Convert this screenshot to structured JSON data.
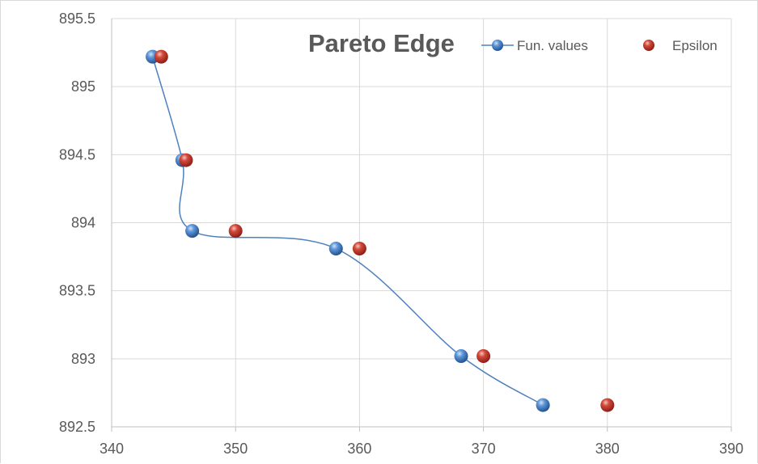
{
  "chart_data": {
    "type": "scatter",
    "title": "Pareto Edge",
    "xlabel": "",
    "ylabel": "",
    "xlim": [
      340,
      390
    ],
    "ylim": [
      892.5,
      895.5
    ],
    "x_ticks": [
      "340",
      "350",
      "360",
      "370",
      "380",
      "390"
    ],
    "y_ticks": [
      "892.5",
      "893",
      "893.5",
      "894",
      "894.5",
      "895",
      "895.5"
    ],
    "grid": true,
    "legend_position": "top-right",
    "series": [
      {
        "name": "Fun. values",
        "style": "smooth-line-with-markers",
        "color": "#2e6db4",
        "line_color": "#4f81bd",
        "x": [
          343.3,
          345.7,
          346.5,
          358.1,
          368.2,
          374.8
        ],
        "y": [
          895.22,
          894.46,
          893.94,
          893.81,
          893.02,
          892.66
        ]
      },
      {
        "name": "Epsilon",
        "style": "markers-only",
        "color": "#c0392b",
        "x": [
          344,
          346,
          350,
          360,
          370,
          380
        ],
        "y": [
          895.22,
          894.46,
          893.94,
          893.81,
          893.02,
          892.66
        ]
      }
    ]
  }
}
